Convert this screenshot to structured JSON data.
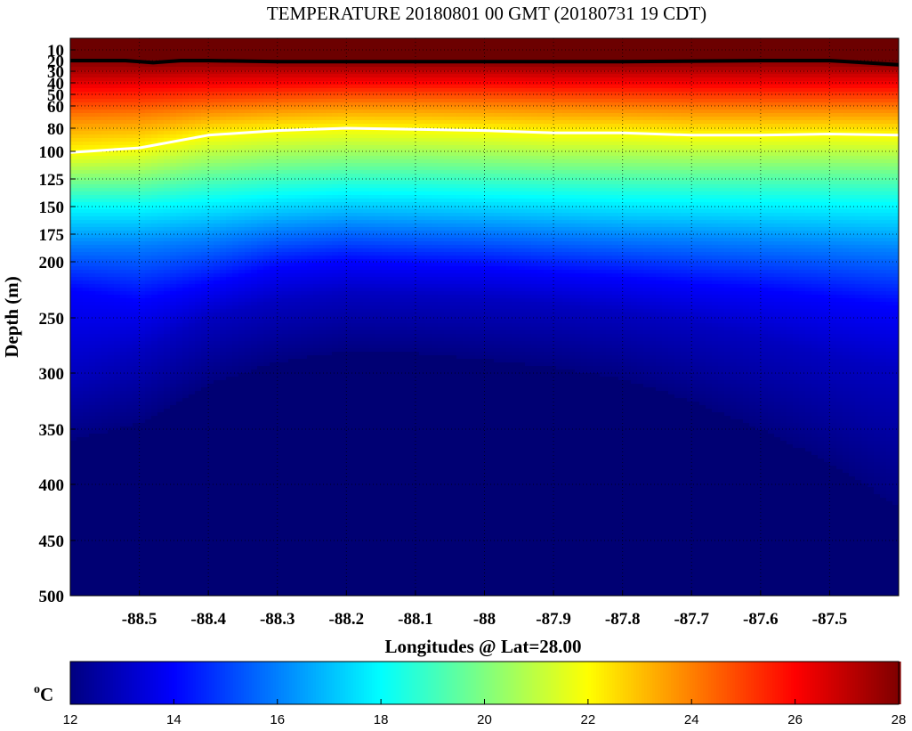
{
  "chart_data": {
    "type": "heatmap",
    "title": "TEMPERATURE 20180801 00 GMT (20180731 19 CDT)",
    "xlabel": "Longitudes @ Lat=28.00",
    "ylabel": "Depth (m)",
    "xlim": [
      -88.6,
      -87.4
    ],
    "ylim": [
      0,
      500
    ],
    "y_scale": "piecewise (compressed 0-100 m, linear below)",
    "x_ticks": [
      "-88.5",
      "-88.4",
      "-88.3",
      "-88.2",
      "-88.1",
      "-88",
      "-87.9",
      "-87.8",
      "-87.7",
      "-87.6",
      "-87.5"
    ],
    "x_tick_values": [
      -88.5,
      -88.4,
      -88.3,
      -88.2,
      -88.1,
      -88.0,
      -87.9,
      -87.8,
      -87.7,
      -87.6,
      -87.5
    ],
    "y_ticks": [
      "10",
      "20",
      "30",
      "40",
      "50",
      "60",
      "80",
      "100",
      "125",
      "150",
      "175",
      "200",
      "250",
      "300",
      "350",
      "400",
      "450",
      "500"
    ],
    "y_tick_values": [
      10,
      20,
      30,
      40,
      50,
      60,
      80,
      100,
      125,
      150,
      175,
      200,
      250,
      300,
      350,
      400,
      450,
      500
    ],
    "grid": true,
    "colormap": "jet",
    "colorbar": {
      "unit": "oC",
      "range": [
        12,
        28
      ],
      "ticks": [
        "12",
        "14",
        "16",
        "18",
        "20",
        "22",
        "24",
        "26",
        "28"
      ]
    },
    "contours": [
      {
        "level": 28,
        "color": "#000000",
        "x": [
          -88.6,
          -88.52,
          -88.48,
          -88.44,
          -88.4,
          -88.3,
          -88.2,
          -88.0,
          -87.8,
          -87.6,
          -87.5,
          -87.4
        ],
        "depth": [
          20,
          20,
          22,
          20,
          20,
          21,
          21,
          21,
          21,
          20,
          20,
          24
        ]
      },
      {
        "level": 22,
        "color": "#ffffff",
        "x": [
          -88.6,
          -88.5,
          -88.4,
          -88.3,
          -88.2,
          -88.1,
          -88.0,
          -87.9,
          -87.8,
          -87.7,
          -87.6,
          -87.5,
          -87.4
        ],
        "depth": [
          101,
          97,
          86,
          82,
          80,
          81,
          82,
          84,
          84,
          86,
          86,
          85,
          86
        ]
      }
    ],
    "isotherm_depths": {
      "x": [
        -88.6,
        -88.5,
        -88.4,
        -88.3,
        -88.2,
        -88.1,
        -88.0,
        -87.9,
        -87.8,
        -87.7,
        -87.6,
        -87.5,
        -87.4
      ],
      "t27": [
        34,
        33,
        31,
        30,
        30,
        30,
        30,
        31,
        31,
        31,
        31,
        31,
        31
      ],
      "t26": [
        45,
        44,
        42,
        41,
        40,
        40,
        40,
        41,
        41,
        42,
        42,
        42,
        42
      ],
      "t24": [
        70,
        68,
        63,
        60,
        58,
        58,
        59,
        60,
        61,
        62,
        62,
        62,
        62
      ],
      "t22": [
        101,
        97,
        86,
        82,
        80,
        81,
        82,
        84,
        84,
        86,
        86,
        85,
        86
      ],
      "t20": [
        125,
        124,
        115,
        110,
        108,
        108,
        110,
        112,
        113,
        114,
        114,
        114,
        115
      ],
      "t18": [
        150,
        150,
        145,
        140,
        137,
        138,
        140,
        142,
        144,
        145,
        146,
        147,
        148
      ],
      "t16": [
        185,
        185,
        180,
        172,
        168,
        170,
        172,
        175,
        178,
        180,
        183,
        186,
        190
      ],
      "t14": [
        225,
        235,
        220,
        205,
        200,
        203,
        205,
        210,
        214,
        220,
        225,
        232,
        240
      ],
      "t13": [
        300,
        280,
        250,
        235,
        228,
        230,
        233,
        238,
        245,
        255,
        268,
        285,
        300
      ],
      "t12": [
        360,
        345,
        310,
        290,
        280,
        282,
        288,
        295,
        305,
        325,
        350,
        380,
        420
      ]
    }
  }
}
